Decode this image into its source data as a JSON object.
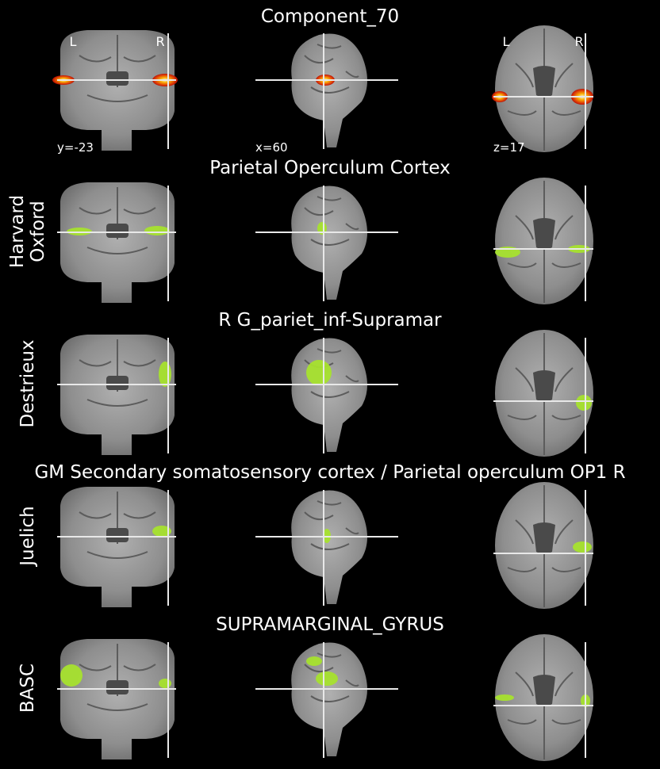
{
  "figure": {
    "rows": [
      {
        "title": "Component_70",
        "label": [],
        "overlay": "heat",
        "coords": [
          "y=-23",
          "x=60",
          "z=17"
        ],
        "orientation": [
          "L",
          "R",
          "L",
          "R"
        ]
      },
      {
        "title": "Parietal Operculum Cortex",
        "label": [
          "Harvard",
          "Oxford"
        ],
        "overlay": "green"
      },
      {
        "title": "R G_pariet_inf-Supramar",
        "label": [
          "Destrieux"
        ],
        "overlay": "green"
      },
      {
        "title": "GM Secondary somatosensory cortex / Parietal operculum OP1 R",
        "label": [
          "Juelich"
        ],
        "overlay": "green"
      },
      {
        "title": "SUPRAMARGINAL_GYRUS",
        "label": [
          "BASC"
        ],
        "overlay": "green"
      }
    ],
    "colors": {
      "background": "#000000",
      "brain": "#9a9a9a",
      "crosshair": "#e8e8e8",
      "atlas_overlay": "#a6e22e",
      "heat_overlay": "#ff6a00"
    }
  }
}
